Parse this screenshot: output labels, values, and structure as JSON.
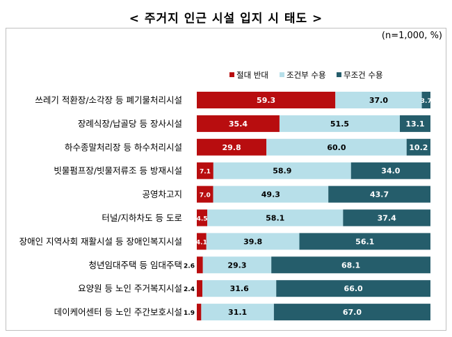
{
  "title": "< 주거지 인근 시설 입지 시 태도 >",
  "unit_note": "(n=1,000, %)",
  "colors": {
    "oppose": "#b80d0f",
    "conditional": "#b7dfe9",
    "unconditional": "#255d6b"
  },
  "chart_data": {
    "type": "bar",
    "orientation": "horizontal",
    "stacked": true,
    "legend_position": "top-right",
    "xlim": [
      0,
      100
    ],
    "grid": false,
    "categories": [
      "쓰레기 적환장/소각장 등 폐기물처리시설",
      "장례식장/납골당 등 장사시설",
      "하수종말처리장 등 하수처리시설",
      "빗물펌프장/빗물저류조 등 방재시설",
      "공영차고지",
      "터널/지하차도 등 도로",
      "장애인 지역사회 재활시설 등 장애인복지시설",
      "청년임대주택 등 임대주택",
      "요양원 등 노인 주거복지시설",
      "데이케어센터 등 노인 주간보호시설"
    ],
    "series": [
      {
        "name": "절대 반대",
        "values": [
          59.3,
          35.4,
          29.8,
          7.1,
          7.0,
          4.5,
          4.1,
          2.6,
          2.4,
          1.9
        ],
        "labels": [
          "59.3",
          "35.4",
          "29.8",
          "7.1",
          "7.0",
          "4.5",
          "4.1",
          "2.6",
          "2.4",
          "1.9"
        ]
      },
      {
        "name": "조건부 수용",
        "values": [
          37.0,
          51.5,
          60.0,
          58.9,
          49.3,
          58.1,
          39.8,
          29.3,
          31.6,
          31.1
        ],
        "labels": [
          "37.0",
          "51.5",
          "60.0",
          "58.9",
          "49.3",
          "58.1",
          "39.8",
          "29.3",
          "31.6",
          "31.1"
        ]
      },
      {
        "name": "무조건 수용",
        "values": [
          3.7,
          13.1,
          10.2,
          34.0,
          43.7,
          37.4,
          56.1,
          68.1,
          66.0,
          67.0
        ],
        "labels": [
          "3.7",
          "13.1",
          "10.2",
          "34.0",
          "43.7",
          "37.4",
          "56.1",
          "68.1",
          "66.0",
          "67.0"
        ]
      }
    ]
  }
}
